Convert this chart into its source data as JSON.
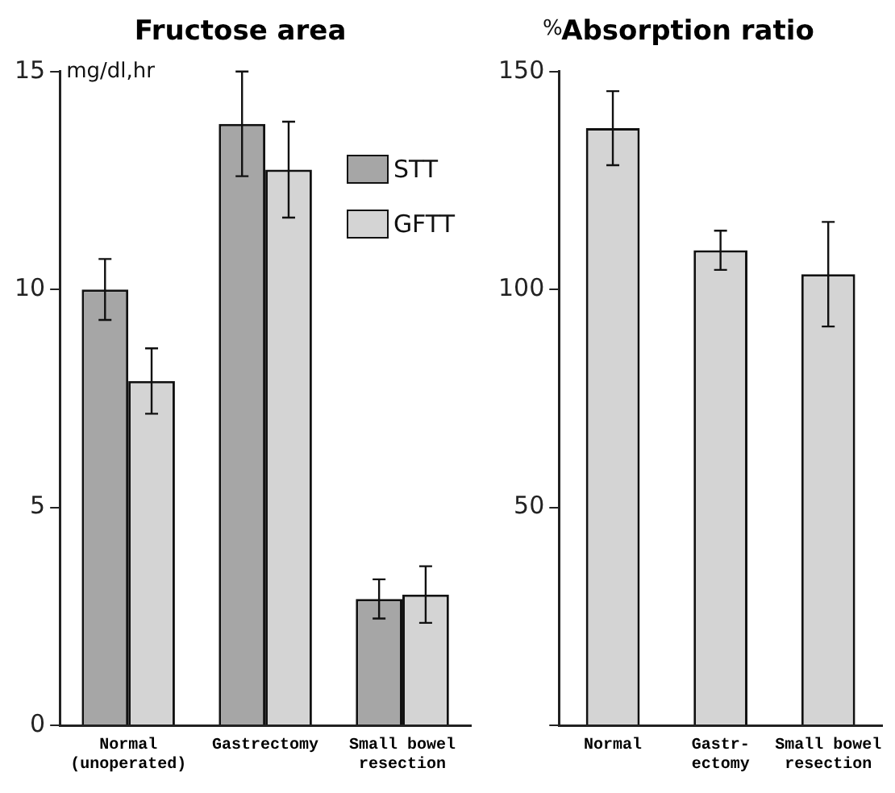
{
  "chart_data": [
    {
      "type": "bar",
      "title": "Fructose area",
      "ylabel": "mg/dl,hr",
      "categories": [
        "Normal\n(unoperated)",
        "Gastrectomy",
        "Small bowel\nresection"
      ],
      "series": [
        {
          "name": "STT",
          "color": "#a6a6a6",
          "values": [
            10.0,
            13.8,
            2.9
          ],
          "errors": [
            0.7,
            1.2,
            0.45
          ]
        },
        {
          "name": "GFTT",
          "color": "#d4d4d4",
          "values": [
            7.9,
            12.75,
            3.0
          ],
          "errors": [
            0.75,
            1.1,
            0.65
          ]
        }
      ],
      "ylim": [
        0,
        15
      ],
      "yticks": [
        0,
        5,
        10,
        15
      ],
      "grid": false,
      "legend": "top right"
    },
    {
      "type": "bar",
      "title": "Absorption ratio",
      "ylabel": "%",
      "categories": [
        "Normal",
        "Gastr-\nectomy",
        "Small bowel\nresection"
      ],
      "values": [
        137,
        109,
        103.5
      ],
      "errors": [
        8.5,
        4.5,
        12
      ],
      "color": "#d4d4d4",
      "ylim": [
        0,
        150
      ],
      "yticks": [
        {
          "value": 0,
          "label": null
        },
        50,
        100,
        150
      ],
      "grid": false,
      "legend": false
    }
  ]
}
